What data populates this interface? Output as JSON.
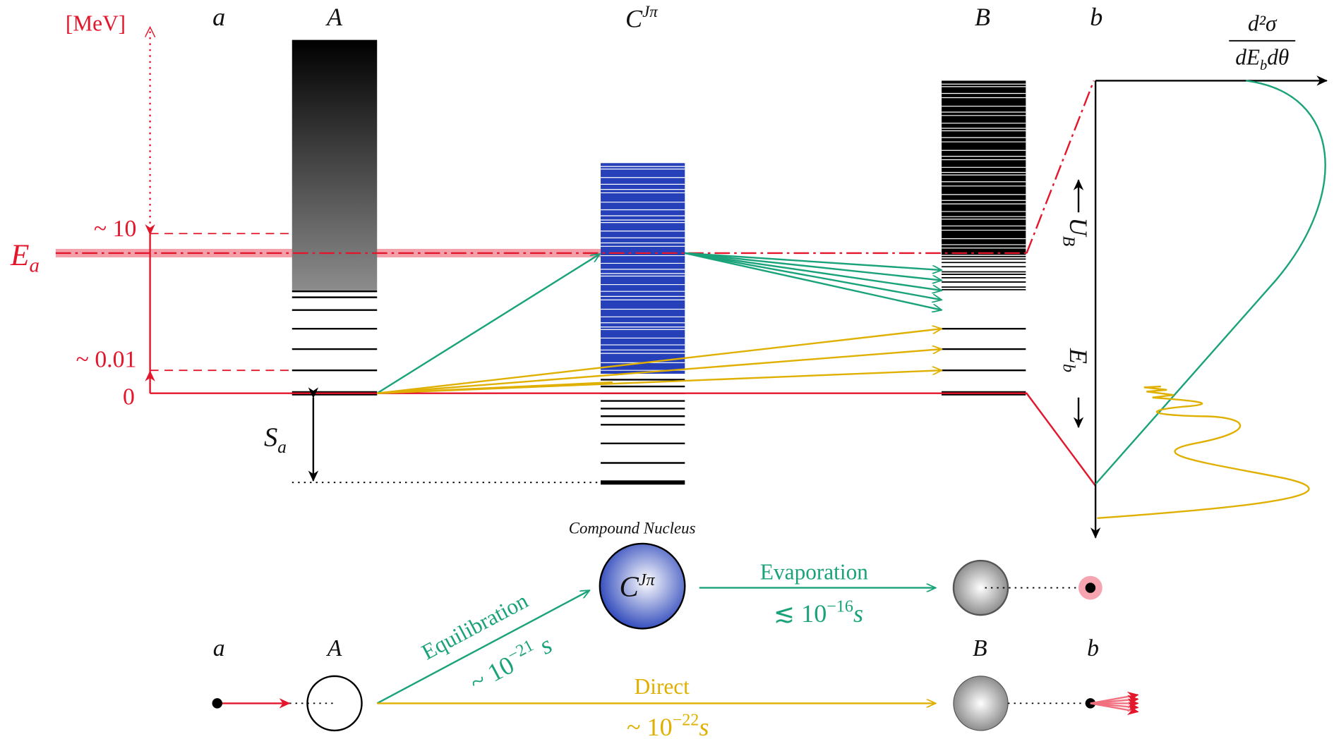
{
  "energy_scale": {
    "unit": "[MeV]",
    "high": "~ 10",
    "low": "~ 0.01",
    "zero": "0",
    "beam": {
      "symbol": "E",
      "sub": "a"
    }
  },
  "levels": {
    "a": "a",
    "A": "A",
    "compound": {
      "symbol": "C",
      "sup": "Jπ"
    },
    "B": "B",
    "b": "b"
  },
  "separation": {
    "symbol": "S",
    "sub": "a"
  },
  "spectrum": {
    "numerator": "d²σ",
    "denominator": {
      "pre": "dE",
      "sub": "b",
      "post": "dθ"
    },
    "U": {
      "symbol": "U",
      "sub": "B"
    },
    "E": {
      "symbol": "E",
      "sub": "b"
    }
  },
  "reaction": {
    "compound_label": "Compound Nucleus",
    "compound": {
      "symbol": "C",
      "sup": "Jπ"
    },
    "projectile": "a",
    "target": "A",
    "residual": "B",
    "ejectile": "b",
    "equilibration": {
      "label": "Equilibration",
      "time": {
        "pre": "~ 10",
        "sup": "−21",
        "post": " s"
      }
    },
    "evaporation": {
      "label": "Evaporation",
      "time": {
        "pre": "≲ 10",
        "sup": "−16",
        "post": "s"
      }
    },
    "direct": {
      "label": "Direct",
      "time": {
        "pre": "~ 10",
        "sup": "−22",
        "post": "s"
      }
    }
  }
}
